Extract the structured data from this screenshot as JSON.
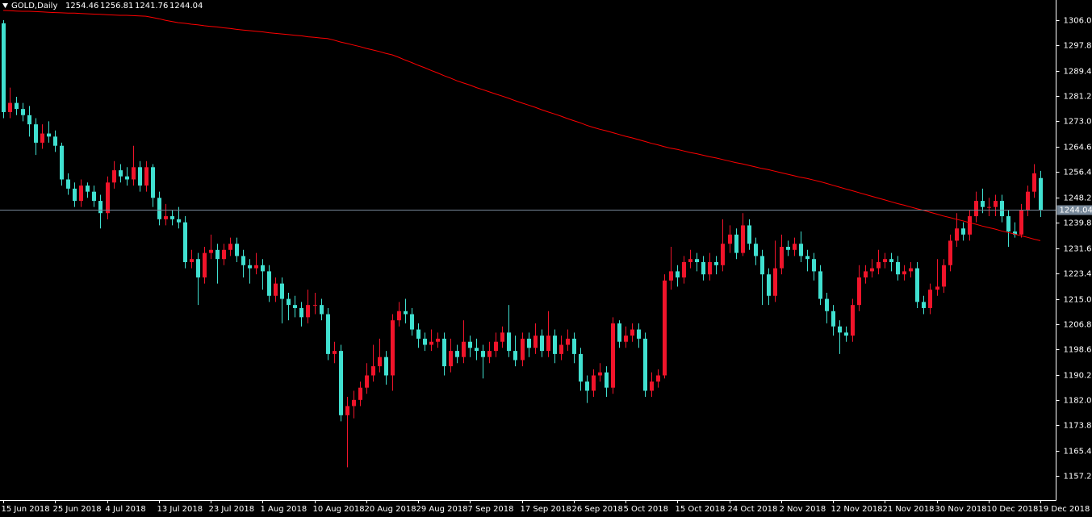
{
  "chart_data": {
    "type": "candlestick",
    "title": "GOLD,Daily",
    "categories": [
      "15 Jun 2018",
      null,
      null,
      null,
      null,
      null,
      null,
      null,
      "25 Jun 2018",
      null,
      null,
      null,
      null,
      null,
      null,
      null,
      "4 Jul 2018",
      null,
      null,
      null,
      null,
      null,
      null,
      null,
      "13 Jul 2018",
      null,
      null,
      null,
      null,
      null,
      null,
      null,
      "23 Jul 2018",
      null,
      null,
      null,
      null,
      null,
      null,
      null,
      "1 Aug 2018",
      null,
      null,
      null,
      null,
      null,
      null,
      null,
      "10 Aug 2018",
      null,
      null,
      null,
      null,
      null,
      null,
      null,
      "20 Aug 2018",
      null,
      null,
      null,
      null,
      null,
      null,
      null,
      "29 Aug 2018",
      null,
      null,
      null,
      null,
      null,
      null,
      null,
      "7 Sep 2018",
      null,
      null,
      null,
      null,
      null,
      null,
      null,
      "17 Sep 2018",
      null,
      null,
      null,
      null,
      null,
      null,
      null,
      "26 Sep 2018",
      null,
      null,
      null,
      null,
      null,
      null,
      null,
      "5 Oct 2018",
      null,
      null,
      null,
      null,
      null,
      null,
      null,
      "15 Oct 2018",
      null,
      null,
      null,
      null,
      null,
      null,
      null,
      "24 Oct 2018",
      null,
      null,
      null,
      null,
      null,
      null,
      null,
      "2 Nov 2018",
      null,
      null,
      null,
      null,
      null,
      null,
      null,
      "12 Nov 2018",
      null,
      null,
      null,
      null,
      null,
      null,
      null,
      "21 Nov 2018",
      null,
      null,
      null,
      null,
      null,
      null,
      null,
      "30 Nov 2018",
      null,
      null,
      null,
      null,
      null,
      null,
      null,
      "10 Dec 2018",
      null,
      null,
      null,
      null,
      null,
      null,
      null,
      "19 Dec 2018"
    ],
    "open": [
      1305,
      1276,
      1279,
      1277,
      1275,
      1272,
      1266,
      1269,
      1268,
      1265,
      1254,
      1251,
      1247,
      1252,
      1250,
      1247,
      1243,
      1253,
      1257,
      1255,
      1254,
      1258,
      1252,
      1258,
      1248,
      1241,
      1242,
      1241,
      1240,
      1227,
      1228,
      1222,
      1230,
      1231,
      1228,
      1231,
      1233,
      1229,
      1226,
      1225,
      1226,
      1224,
      1216,
      1220,
      1215,
      1213,
      1212,
      1209,
      1213,
      1213,
      1210,
      1197,
      1198,
      1177,
      1180,
      1182,
      1186,
      1190,
      1193,
      1196,
      1190,
      1208,
      1211,
      1210,
      1205,
      1202,
      1200,
      1201,
      1202,
      1193,
      1198,
      1196,
      1201,
      1199,
      1198,
      1196,
      1198,
      1201,
      1204,
      1198,
      1195,
      1202,
      1199,
      1203,
      1198,
      1203,
      1197,
      1200,
      1202,
      1197,
      1188,
      1185,
      1190,
      1191,
      1186,
      1207,
      1201,
      1203,
      1205,
      1202,
      1185,
      1188,
      1190,
      1221,
      1224,
      1222,
      1227,
      1228,
      1227,
      1223,
      1227,
      1226,
      1233,
      1236,
      1230,
      1239,
      1233,
      1229,
      1223,
      1216,
      1225,
      1232,
      1231,
      1233,
      1229,
      1228,
      1224,
      1215,
      1211,
      1206,
      1204,
      1203,
      1213,
      1222,
      1224,
      1225,
      1227,
      1228,
      1227,
      1223,
      1224,
      1225,
      1214,
      1212,
      1218,
      1219,
      1226,
      1234,
      1238,
      1236,
      1242,
      1247,
      1245,
      1245,
      1247,
      1242,
      1237,
      1236,
      1244,
      1250,
      1254.46
    ],
    "high": [
      1306,
      1284,
      1281,
      1279,
      1278,
      1274,
      1272,
      1273,
      1270,
      1266,
      1256,
      1253,
      1254,
      1253,
      1252,
      1249,
      1255,
      1260,
      1259,
      1258,
      1265,
      1260,
      1260,
      1259,
      1250,
      1246,
      1244,
      1245,
      1242,
      1231,
      1230,
      1232,
      1236,
      1233,
      1233,
      1235,
      1235,
      1231,
      1228,
      1230,
      1228,
      1226,
      1222,
      1222,
      1217,
      1216,
      1214,
      1218,
      1217,
      1215,
      1212,
      1201,
      1200,
      1183,
      1185,
      1188,
      1194,
      1200,
      1202,
      1198,
      1210,
      1214,
      1215,
      1212,
      1207,
      1204,
      1205,
      1204,
      1204,
      1202,
      1200,
      1208,
      1203,
      1202,
      1200,
      1201,
      1204,
      1206,
      1213,
      1203,
      1204,
      1204,
      1207,
      1205,
      1211,
      1205,
      1203,
      1205,
      1204,
      1199,
      1190,
      1192,
      1194,
      1193,
      1209,
      1208,
      1206,
      1207,
      1207,
      1204,
      1191,
      1192,
      1223,
      1232,
      1226,
      1229,
      1231,
      1230,
      1229,
      1230,
      1229,
      1241,
      1239,
      1238,
      1243,
      1241,
      1235,
      1231,
      1225,
      1234,
      1236,
      1234,
      1235,
      1237,
      1231,
      1230,
      1226,
      1217,
      1213,
      1208,
      1206,
      1215,
      1226,
      1226,
      1228,
      1231,
      1230,
      1230,
      1229,
      1226,
      1227,
      1227,
      1216,
      1220,
      1228,
      1228,
      1236,
      1243,
      1240,
      1244,
      1250,
      1251,
      1248,
      1249,
      1249,
      1244,
      1240,
      1246,
      1252,
      1259,
      1256.81
    ],
    "low": [
      1274,
      1274,
      1275,
      1273,
      1268,
      1262,
      1264,
      1266,
      1263,
      1252,
      1249,
      1245,
      1245,
      1248,
      1245,
      1238,
      1241,
      1251,
      1253,
      1252,
      1252,
      1250,
      1250,
      1245,
      1239,
      1239,
      1239,
      1238,
      1225,
      1225,
      1213,
      1220,
      1228,
      1220,
      1226,
      1229,
      1227,
      1222,
      1220,
      1223,
      1218,
      1214,
      1214,
      1207,
      1208,
      1209,
      1206,
      1207,
      1210,
      1208,
      1195,
      1194,
      1175,
      1160,
      1176,
      1180,
      1184,
      1188,
      1191,
      1187,
      1185,
      1206,
      1207,
      1203,
      1199,
      1198,
      1198,
      1199,
      1190,
      1191,
      1194,
      1194,
      1196,
      1195,
      1189,
      1194,
      1196,
      1199,
      1196,
      1193,
      1193,
      1196,
      1197,
      1196,
      1196,
      1194,
      1195,
      1198,
      1194,
      1185,
      1181,
      1183,
      1188,
      1183,
      1184,
      1199,
      1199,
      1201,
      1199,
      1183,
      1183,
      1186,
      1189,
      1218,
      1219,
      1220,
      1225,
      1224,
      1221,
      1221,
      1223,
      1224,
      1230,
      1228,
      1229,
      1231,
      1226,
      1213,
      1213,
      1214,
      1223,
      1229,
      1229,
      1227,
      1224,
      1221,
      1213,
      1207,
      1203,
      1197,
      1201,
      1201,
      1211,
      1220,
      1222,
      1223,
      1225,
      1224,
      1221,
      1221,
      1222,
      1212,
      1210,
      1210,
      1216,
      1217,
      1224,
      1232,
      1234,
      1234,
      1240,
      1243,
      1242,
      1242,
      1240,
      1232,
      1235,
      1235,
      1242,
      1248,
      1241.76
    ],
    "close": [
      1276,
      1279,
      1277,
      1275,
      1272,
      1266,
      1269,
      1268,
      1265,
      1254,
      1251,
      1247,
      1252,
      1250,
      1247,
      1243,
      1253,
      1257,
      1255,
      1254,
      1258,
      1252,
      1258,
      1248,
      1241,
      1242,
      1241,
      1240,
      1227,
      1228,
      1222,
      1230,
      1231,
      1228,
      1231,
      1233,
      1229,
      1226,
      1225,
      1226,
      1224,
      1216,
      1220,
      1215,
      1213,
      1212,
      1209,
      1213,
      1213,
      1210,
      1197,
      1198,
      1177,
      1180,
      1182,
      1186,
      1190,
      1193,
      1196,
      1190,
      1208,
      1211,
      1210,
      1205,
      1202,
      1200,
      1201,
      1202,
      1193,
      1198,
      1196,
      1201,
      1199,
      1198,
      1196,
      1198,
      1201,
      1204,
      1198,
      1195,
      1202,
      1199,
      1203,
      1198,
      1203,
      1197,
      1200,
      1202,
      1197,
      1188,
      1185,
      1190,
      1191,
      1186,
      1207,
      1201,
      1203,
      1205,
      1202,
      1185,
      1188,
      1190,
      1221,
      1224,
      1222,
      1227,
      1228,
      1227,
      1223,
      1227,
      1226,
      1233,
      1236,
      1230,
      1239,
      1233,
      1229,
      1223,
      1216,
      1225,
      1232,
      1231,
      1233,
      1229,
      1228,
      1224,
      1215,
      1211,
      1206,
      1204,
      1203,
      1213,
      1222,
      1224,
      1225,
      1227,
      1228,
      1227,
      1223,
      1224,
      1225,
      1214,
      1212,
      1218,
      1219,
      1226,
      1234,
      1238,
      1236,
      1242,
      1247,
      1245,
      1245,
      1247,
      1242,
      1237,
      1236,
      1244,
      1250,
      1256,
      1244.04
    ],
    "up_color": "#f0142a",
    "down_color": "#40e0d0",
    "ma": {
      "color": "#ff0000",
      "values": [
        1309.2,
        1309.1,
        1309.0,
        1308.9,
        1308.9,
        1308.8,
        1308.7,
        1308.6,
        1308.5,
        1308.4,
        1308.3,
        1308.3,
        1308.2,
        1308.1,
        1308.0,
        1307.9,
        1307.8,
        1307.7,
        1307.6,
        1307.6,
        1307.5,
        1307.4,
        1307.3,
        1306.9,
        1306.5,
        1306.0,
        1305.6,
        1305.2,
        1305.0,
        1304.7,
        1304.5,
        1304.2,
        1304.0,
        1303.8,
        1303.5,
        1303.3,
        1303.0,
        1302.8,
        1302.6,
        1302.4,
        1302.2,
        1301.9,
        1301.7,
        1301.5,
        1301.3,
        1301.1,
        1300.9,
        1300.6,
        1300.4,
        1300.2,
        1300.0,
        1299.5,
        1298.9,
        1298.4,
        1297.9,
        1297.4,
        1296.8,
        1296.3,
        1295.8,
        1295.2,
        1294.7,
        1293.9,
        1293.0,
        1292.2,
        1291.3,
        1290.5,
        1289.6,
        1288.8,
        1287.9,
        1287.1,
        1286.2,
        1285.5,
        1284.8,
        1284.0,
        1283.3,
        1282.6,
        1281.9,
        1281.2,
        1280.5,
        1279.7,
        1279.0,
        1278.3,
        1277.6,
        1276.8,
        1276.1,
        1275.4,
        1274.7,
        1273.9,
        1273.2,
        1272.5,
        1271.7,
        1271.0,
        1270.4,
        1269.9,
        1269.3,
        1268.7,
        1268.1,
        1267.6,
        1267.0,
        1266.4,
        1265.8,
        1265.3,
        1264.7,
        1264.2,
        1263.8,
        1263.3,
        1262.8,
        1262.4,
        1261.9,
        1261.4,
        1261.0,
        1260.5,
        1260.0,
        1259.5,
        1259.1,
        1258.6,
        1258.1,
        1257.6,
        1257.2,
        1256.7,
        1256.2,
        1255.7,
        1255.2,
        1254.7,
        1254.3,
        1253.8,
        1253.3,
        1252.7,
        1252.1,
        1251.5,
        1250.9,
        1250.3,
        1249.7,
        1249.1,
        1248.5,
        1247.9,
        1247.3,
        1246.7,
        1246.1,
        1245.6,
        1245.0,
        1244.4,
        1243.9,
        1243.3,
        1242.7,
        1242.1,
        1241.6,
        1241.0,
        1240.5,
        1239.9,
        1239.4,
        1238.8,
        1238.3,
        1237.8,
        1237.2,
        1236.7,
        1236.2,
        1235.6,
        1235.1,
        1234.5,
        1234.0
      ]
    },
    "price_line_color": "#778899",
    "ylim": [
      1149.3,
      1312.6
    ],
    "yticks": [
      {
        "value": 1306,
        "label": "1306.00"
      },
      {
        "value": 1297.8,
        "label": "1297.80"
      },
      {
        "value": 1289.4,
        "label": "1289.40"
      },
      {
        "value": 1281.2,
        "label": "1281.20"
      },
      {
        "value": 1273,
        "label": "1273.00"
      },
      {
        "value": 1264.6,
        "label": "1264.60"
      },
      {
        "value": 1256.4,
        "label": "1256.40"
      },
      {
        "value": 1248.2,
        "label": "1248.20"
      },
      {
        "value": 1239.8,
        "label": "1239.80"
      },
      {
        "value": 1231.6,
        "label": "1231.60"
      },
      {
        "value": 1223.4,
        "label": "1223.40"
      },
      {
        "value": 1215,
        "label": "1215.00"
      },
      {
        "value": 1206.8,
        "label": "1206.80"
      },
      {
        "value": 1198.6,
        "label": "1198.60"
      },
      {
        "value": 1190.2,
        "label": "1190.20"
      },
      {
        "value": 1182,
        "label": "1182.00"
      },
      {
        "value": 1173.8,
        "label": "1173.80"
      },
      {
        "value": 1165.4,
        "label": "1165.40"
      },
      {
        "value": 1157.2,
        "label": "1157.20"
      }
    ]
  }
}
